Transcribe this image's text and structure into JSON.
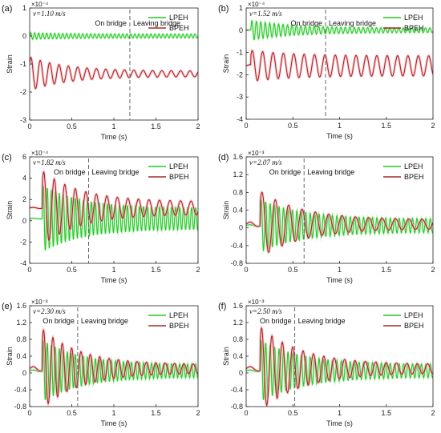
{
  "colors": {
    "lpeh": "#22cc22",
    "bpeh": "#a52a2a",
    "bpeh_shadow": "#ff9aa6",
    "lpeh_shadow": "#bfe8bf",
    "boundary": "#666666"
  },
  "chart_data": [
    {
      "panel": "(a)",
      "type": "line",
      "velocity": "v=1.10 m/s",
      "exponent": "×10⁻⁴",
      "annotations": [
        "On bridge",
        "Leaving bridge"
      ],
      "boundary_x": 1.19,
      "xlabel": "Time (s)",
      "ylabel": "Strain",
      "xlim": [
        0,
        2
      ],
      "ylim": [
        -3,
        1
      ],
      "xticks": [
        "0",
        "0.5",
        "1",
        "1.5",
        "2"
      ],
      "yticks": [
        "1",
        "0",
        "-1",
        "-2",
        "-3"
      ],
      "legend": [
        "LPEH",
        "BPEH"
      ],
      "legend_position": "top-right",
      "series": [
        {
          "name": "LPEH",
          "base": 0.0,
          "amp_start": 0.12,
          "amp_end": 0.07,
          "freq": 21,
          "onset": 0.0
        },
        {
          "name": "BPEH",
          "base": -1.35,
          "amp_start": 0.6,
          "amp_end": 0.1,
          "freq": 9,
          "onset": 0.0
        }
      ]
    },
    {
      "panel": "(b)",
      "type": "line",
      "velocity": "v=1.52 m/s",
      "exponent": "×10⁻⁴",
      "annotations": [
        "On bridge",
        "Leaving bridge"
      ],
      "boundary_x": 0.85,
      "xlabel": "Time (s)",
      "ylabel": "Strain",
      "xlim": [
        0,
        2
      ],
      "ylim": [
        -4,
        1
      ],
      "xticks": [
        "0",
        "0.5",
        "1",
        "1.5",
        "2"
      ],
      "yticks": [
        "1",
        "0",
        "-1",
        "-2",
        "-3",
        "-4"
      ],
      "legend": [
        "LPEH",
        "BPEH"
      ],
      "legend_position": "top-right",
      "series": [
        {
          "name": "LPEH",
          "base": 0.0,
          "amp_start": 0.45,
          "amp_end": 0.1,
          "freq": 21,
          "onset": 0.05
        },
        {
          "name": "BPEH",
          "base": -1.6,
          "amp_start": 0.7,
          "amp_end": 0.45,
          "freq": 9,
          "onset": 0.05
        }
      ]
    },
    {
      "panel": "(c)",
      "type": "line",
      "velocity": "v=1.82 m/s",
      "exponent": "×10⁻⁴",
      "annotations": [
        "On bridge",
        "Leaving bridge"
      ],
      "boundary_x": 0.7,
      "xlabel": "Time (s)",
      "ylabel": "Strain",
      "xlim": [
        0,
        2
      ],
      "ylim": [
        -4,
        6
      ],
      "xticks": [
        "0",
        "0.5",
        "1",
        "1.5",
        "2"
      ],
      "yticks": [
        "6",
        "4",
        "2",
        "0",
        "-2",
        "-4"
      ],
      "legend": [
        "LPEH",
        "BPEH"
      ],
      "legend_position": "top-right",
      "series": [
        {
          "name": "LPEH",
          "base": 0.2,
          "amp_start": 3.2,
          "amp_end": 1.0,
          "freq": 21,
          "onset": 0.15
        },
        {
          "name": "BPEH",
          "base": 1.2,
          "amp_start": 3.5,
          "amp_end": 0.6,
          "freq": 8,
          "onset": 0.15
        }
      ]
    },
    {
      "panel": "(d)",
      "type": "line",
      "velocity": "v=2.07 m/s",
      "exponent": "×10⁻³",
      "annotations": [
        "On bridge",
        "Leaving bridge"
      ],
      "boundary_x": 0.62,
      "xlabel": "Time (s)",
      "ylabel": "Strain",
      "xlim": [
        0,
        2
      ],
      "ylim": [
        -0.8,
        1.6
      ],
      "xticks": [
        "0",
        "0.5",
        "1",
        "1.5",
        "2"
      ],
      "yticks": [
        "1.6",
        "1.2",
        "0.8",
        "0.4",
        "0",
        "-0.4",
        "-0.8"
      ],
      "legend": [
        "LPEH",
        "BPEH"
      ],
      "legend_position": "top-right",
      "series": [
        {
          "name": "LPEH",
          "base": 0.05,
          "amp_start": 0.6,
          "amp_end": 0.15,
          "freq": 21,
          "onset": 0.15
        },
        {
          "name": "BPEH",
          "base": 0.08,
          "amp_start": 0.75,
          "amp_end": 0.1,
          "freq": 7,
          "onset": 0.15
        }
      ]
    },
    {
      "panel": "(e)",
      "type": "line",
      "velocity": "v=2.30 m/s",
      "exponent": "×10⁻³",
      "annotations": [
        "On bridge",
        "Leaving bridge"
      ],
      "boundary_x": 0.57,
      "xlabel": "Time (s)",
      "ylabel": "Strain",
      "xlim": [
        0,
        2
      ],
      "ylim": [
        -0.8,
        1.6
      ],
      "xticks": [
        "0",
        "0.5",
        "1",
        "1.5",
        "2"
      ],
      "yticks": [
        "1.6",
        "1.2",
        "0.8",
        "0.4",
        "0",
        "-0.4",
        "-0.8"
      ],
      "legend": [
        "LPEH",
        "BPEH"
      ],
      "legend_position": "top-right",
      "series": [
        {
          "name": "LPEH",
          "base": 0.05,
          "amp_start": 0.75,
          "amp_end": 0.15,
          "freq": 21,
          "onset": 0.15
        },
        {
          "name": "BPEH",
          "base": 0.1,
          "amp_start": 0.95,
          "amp_end": 0.1,
          "freq": 9,
          "onset": 0.15
        }
      ]
    },
    {
      "panel": "(f)",
      "type": "line",
      "velocity": "v=2.50 m/s",
      "exponent": "×10⁻³",
      "annotations": [
        "On bridge",
        "Leaving bridge"
      ],
      "boundary_x": 0.52,
      "xlabel": "Time (s)",
      "ylabel": "Strain",
      "xlim": [
        0,
        2
      ],
      "ylim": [
        -0.8,
        1.6
      ],
      "xticks": [
        "0",
        "0.5",
        "1",
        "1.5",
        "2"
      ],
      "yticks": [
        "1.6",
        "1.2",
        "0.8",
        "0.4",
        "0",
        "-0.4",
        "-0.8"
      ],
      "legend": [
        "LPEH",
        "BPEH"
      ],
      "legend_position": "top-right",
      "series": [
        {
          "name": "LPEH",
          "base": 0.05,
          "amp_start": 0.75,
          "amp_end": 0.15,
          "freq": 21,
          "onset": 0.15
        },
        {
          "name": "BPEH",
          "base": 0.1,
          "amp_start": 1.0,
          "amp_end": 0.1,
          "freq": 9,
          "onset": 0.15
        }
      ]
    }
  ]
}
